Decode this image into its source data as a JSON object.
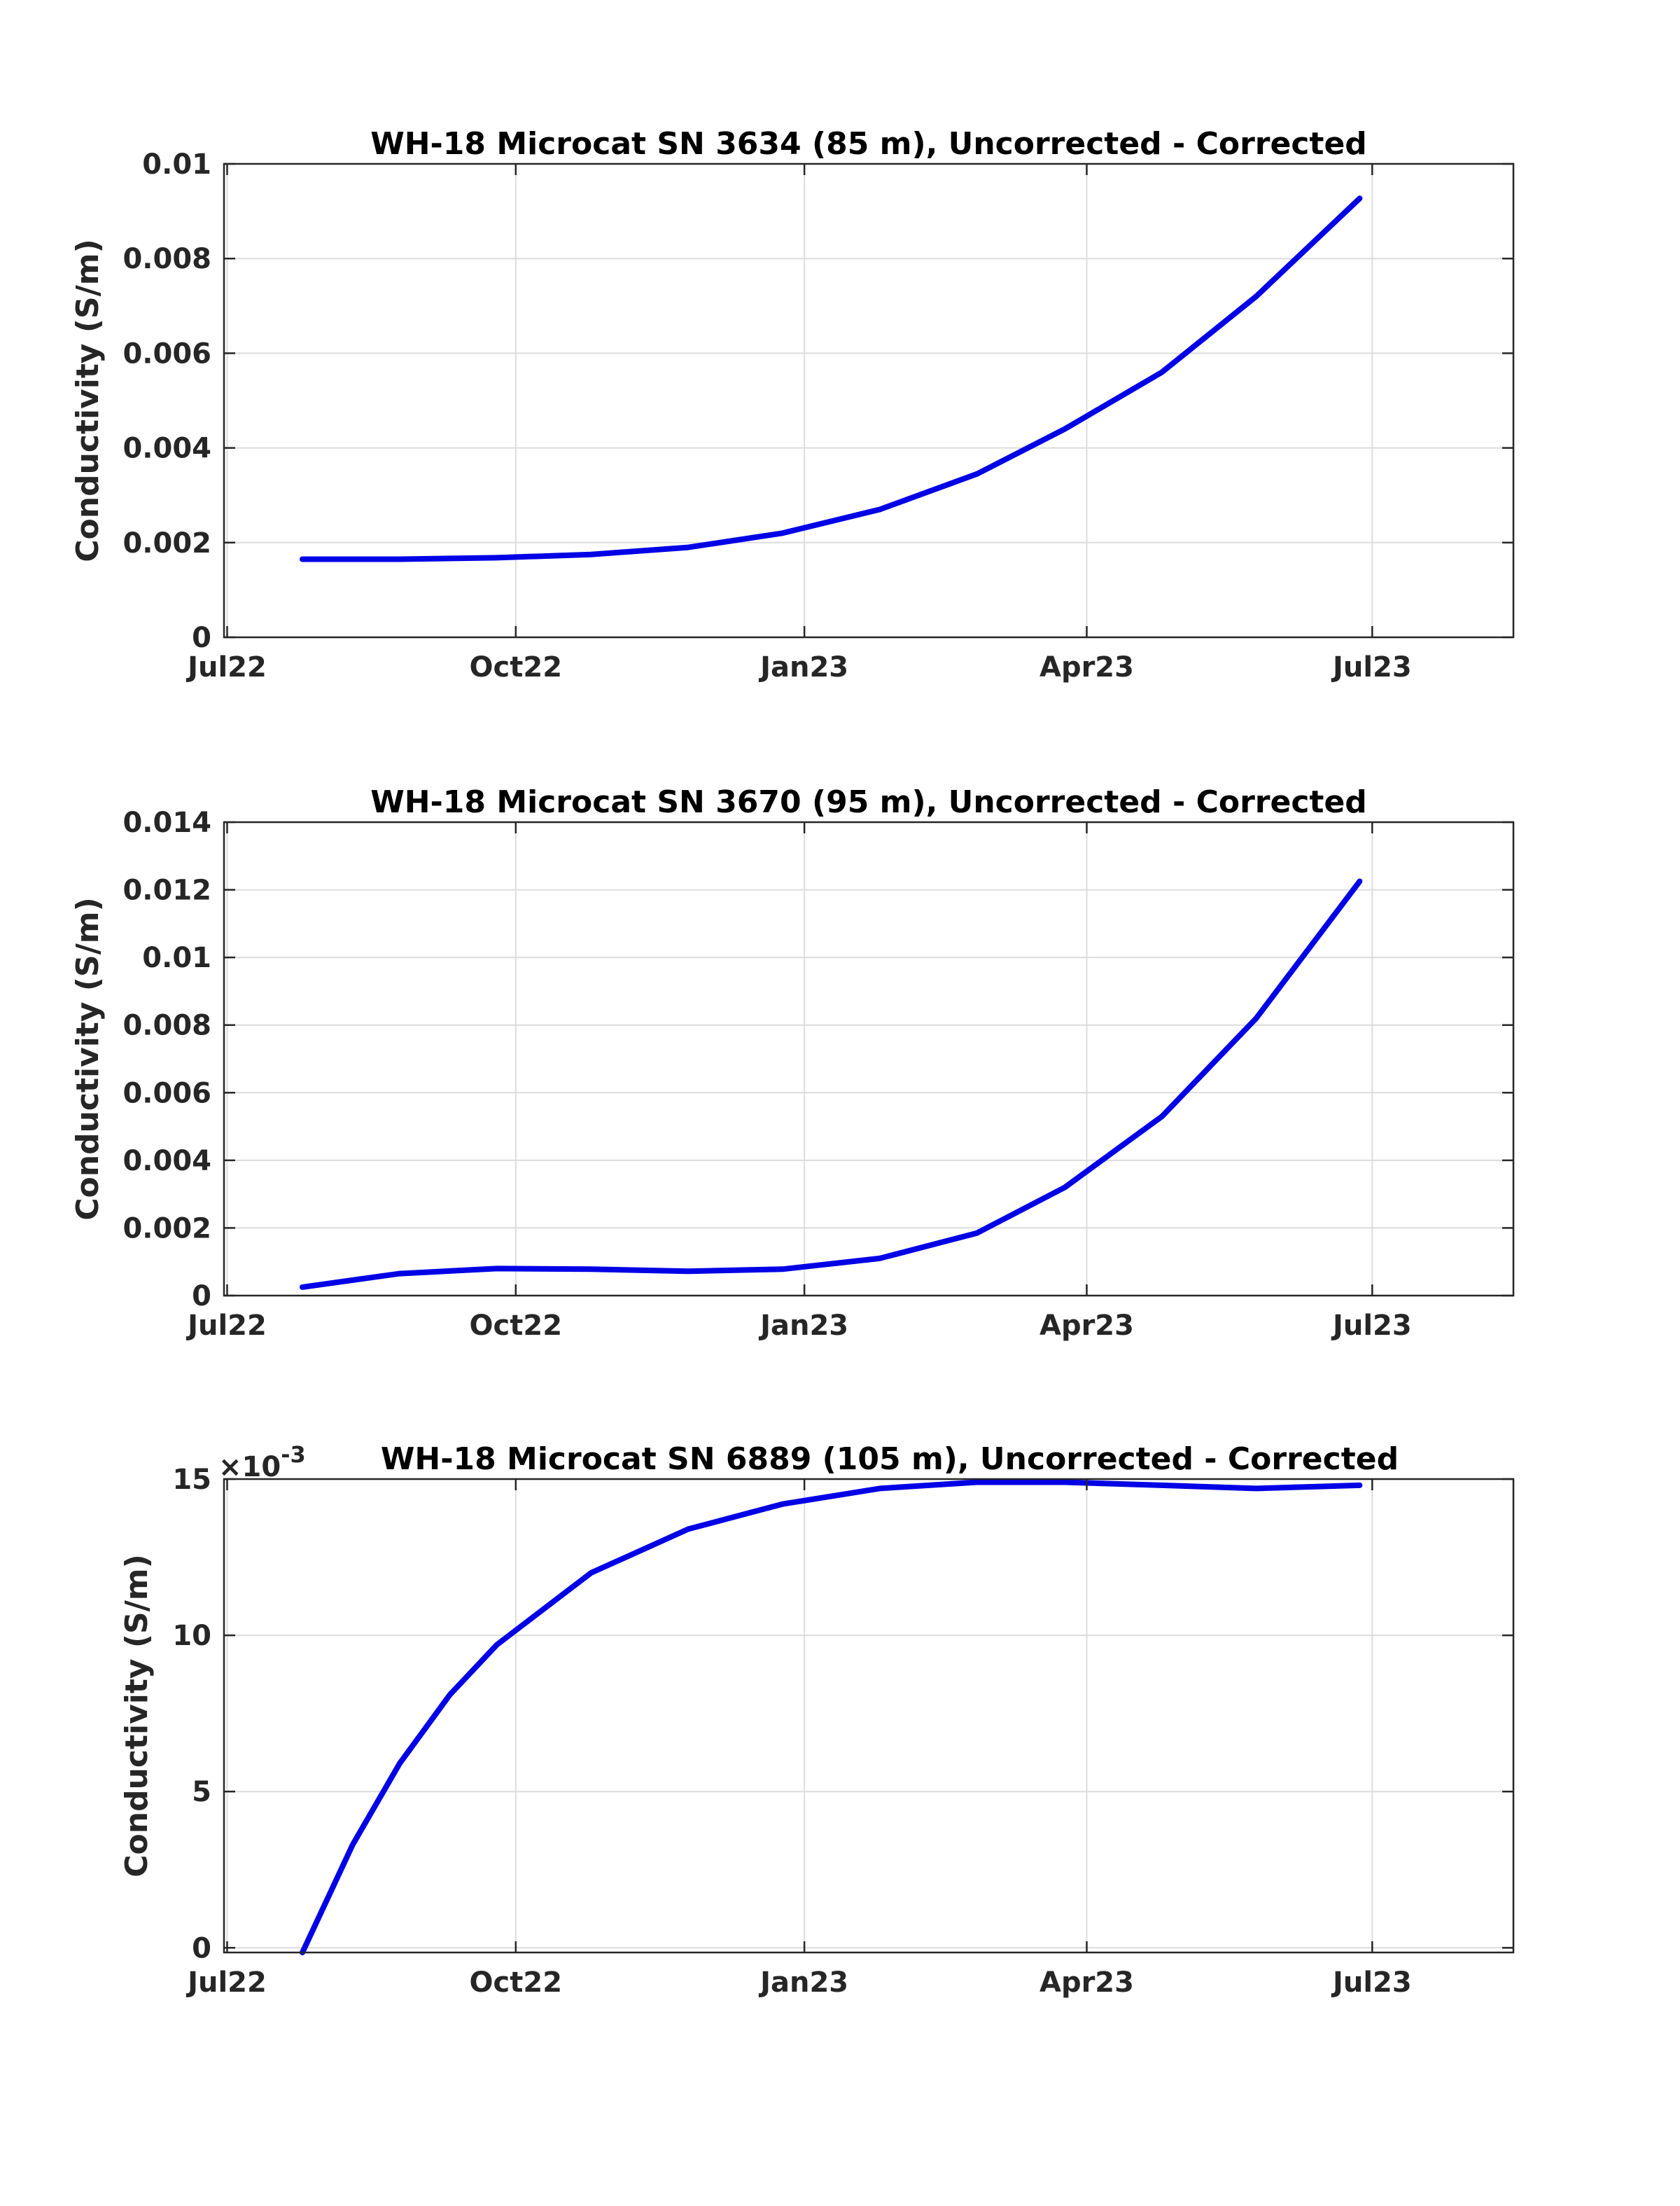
{
  "figure": {
    "background": "#ffffff",
    "line_color": "#0000e6"
  },
  "chart_data": [
    {
      "type": "line",
      "title": "WH-18 Microcat SN 3634 (85 m), Uncorrected - Corrected",
      "xlabel": "",
      "ylabel": "Conductivity (S/m)",
      "xlim": [
        "2022-06-30",
        "2023-08-15"
      ],
      "xticks": [
        {
          "date": "2022-07-01",
          "label": "Jul22"
        },
        {
          "date": "2022-10-01",
          "label": "Oct22"
        },
        {
          "date": "2023-01-01",
          "label": "Jan23"
        },
        {
          "date": "2023-04-01",
          "label": "Apr23"
        },
        {
          "date": "2023-07-01",
          "label": "Jul23"
        }
      ],
      "ylim": [
        0,
        0.01
      ],
      "yticks": [
        {
          "value": 0,
          "label": "0"
        },
        {
          "value": 0.002,
          "label": "0.002"
        },
        {
          "value": 0.004,
          "label": "0.004"
        },
        {
          "value": 0.006,
          "label": "0.006"
        },
        {
          "value": 0.008,
          "label": "0.008"
        },
        {
          "value": 0.01,
          "label": "0.01"
        }
      ],
      "exponent_label": "",
      "grid": true,
      "series": [
        {
          "color": "#0000e6",
          "points": [
            {
              "x": "2022-07-25",
              "y": 0.00165
            },
            {
              "x": "2022-08-25",
              "y": 0.00165
            },
            {
              "x": "2022-09-25",
              "y": 0.00168
            },
            {
              "x": "2022-10-25",
              "y": 0.00175
            },
            {
              "x": "2022-11-25",
              "y": 0.0019
            },
            {
              "x": "2022-12-25",
              "y": 0.0022
            },
            {
              "x": "2023-01-25",
              "y": 0.0027
            },
            {
              "x": "2023-02-25",
              "y": 0.00345
            },
            {
              "x": "2023-03-25",
              "y": 0.0044
            },
            {
              "x": "2023-04-25",
              "y": 0.0056
            },
            {
              "x": "2023-05-25",
              "y": 0.0072
            },
            {
              "x": "2023-06-27",
              "y": 0.00927
            }
          ]
        }
      ]
    },
    {
      "type": "line",
      "title": "WH-18 Microcat SN 3670 (95 m), Uncorrected - Corrected",
      "xlabel": "",
      "ylabel": "Conductivity (S/m)",
      "xlim": [
        "2022-06-30",
        "2023-08-15"
      ],
      "xticks": [
        {
          "date": "2022-07-01",
          "label": "Jul22"
        },
        {
          "date": "2022-10-01",
          "label": "Oct22"
        },
        {
          "date": "2023-01-01",
          "label": "Jan23"
        },
        {
          "date": "2023-04-01",
          "label": "Apr23"
        },
        {
          "date": "2023-07-01",
          "label": "Jul23"
        }
      ],
      "ylim": [
        0,
        0.014
      ],
      "yticks": [
        {
          "value": 0,
          "label": "0"
        },
        {
          "value": 0.002,
          "label": "0.002"
        },
        {
          "value": 0.004,
          "label": "0.004"
        },
        {
          "value": 0.006,
          "label": "0.006"
        },
        {
          "value": 0.008,
          "label": "0.008"
        },
        {
          "value": 0.01,
          "label": "0.01"
        },
        {
          "value": 0.012,
          "label": "0.012"
        },
        {
          "value": 0.014,
          "label": "0.014"
        }
      ],
      "exponent_label": "",
      "grid": true,
      "series": [
        {
          "color": "#0000e6",
          "points": [
            {
              "x": "2022-07-25",
              "y": 0.00025
            },
            {
              "x": "2022-08-25",
              "y": 0.00065
            },
            {
              "x": "2022-09-25",
              "y": 0.0008
            },
            {
              "x": "2022-10-25",
              "y": 0.00078
            },
            {
              "x": "2022-11-25",
              "y": 0.00072
            },
            {
              "x": "2022-12-25",
              "y": 0.00078
            },
            {
              "x": "2023-01-25",
              "y": 0.0011
            },
            {
              "x": "2023-02-25",
              "y": 0.00185
            },
            {
              "x": "2023-03-25",
              "y": 0.0032
            },
            {
              "x": "2023-04-25",
              "y": 0.0053
            },
            {
              "x": "2023-05-25",
              "y": 0.0082
            },
            {
              "x": "2023-06-27",
              "y": 0.01225
            }
          ]
        }
      ]
    },
    {
      "type": "line",
      "title": "WH-18 Microcat SN 6889 (105 m), Uncorrected - Corrected",
      "xlabel": "",
      "ylabel": "Conductivity (S/m)",
      "xlim": [
        "2022-06-30",
        "2023-08-15"
      ],
      "xticks": [
        {
          "date": "2022-07-01",
          "label": "Jul22"
        },
        {
          "date": "2022-10-01",
          "label": "Oct22"
        },
        {
          "date": "2023-01-01",
          "label": "Jan23"
        },
        {
          "date": "2023-04-01",
          "label": "Apr23"
        },
        {
          "date": "2023-07-01",
          "label": "Jul23"
        }
      ],
      "ylim": [
        -0.00015,
        0.015
      ],
      "yticks": [
        {
          "value": 0,
          "label": "0"
        },
        {
          "value": 0.005,
          "label": "5"
        },
        {
          "value": 0.01,
          "label": "10"
        },
        {
          "value": 0.015,
          "label": "15"
        }
      ],
      "exponent_label": "×10",
      "exponent_power": "-3",
      "grid": true,
      "series": [
        {
          "color": "#0000e6",
          "points": [
            {
              "x": "2022-07-25",
              "y": -0.00015
            },
            {
              "x": "2022-08-10",
              "y": 0.0033
            },
            {
              "x": "2022-08-25",
              "y": 0.0059
            },
            {
              "x": "2022-09-10",
              "y": 0.0081
            },
            {
              "x": "2022-09-25",
              "y": 0.0097
            },
            {
              "x": "2022-10-25",
              "y": 0.012
            },
            {
              "x": "2022-11-25",
              "y": 0.0134
            },
            {
              "x": "2022-12-25",
              "y": 0.0142
            },
            {
              "x": "2023-01-25",
              "y": 0.0147
            },
            {
              "x": "2023-02-25",
              "y": 0.0149
            },
            {
              "x": "2023-03-25",
              "y": 0.0149
            },
            {
              "x": "2023-04-25",
              "y": 0.0148
            },
            {
              "x": "2023-05-25",
              "y": 0.0147
            },
            {
              "x": "2023-06-27",
              "y": 0.0148
            }
          ]
        }
      ]
    }
  ]
}
